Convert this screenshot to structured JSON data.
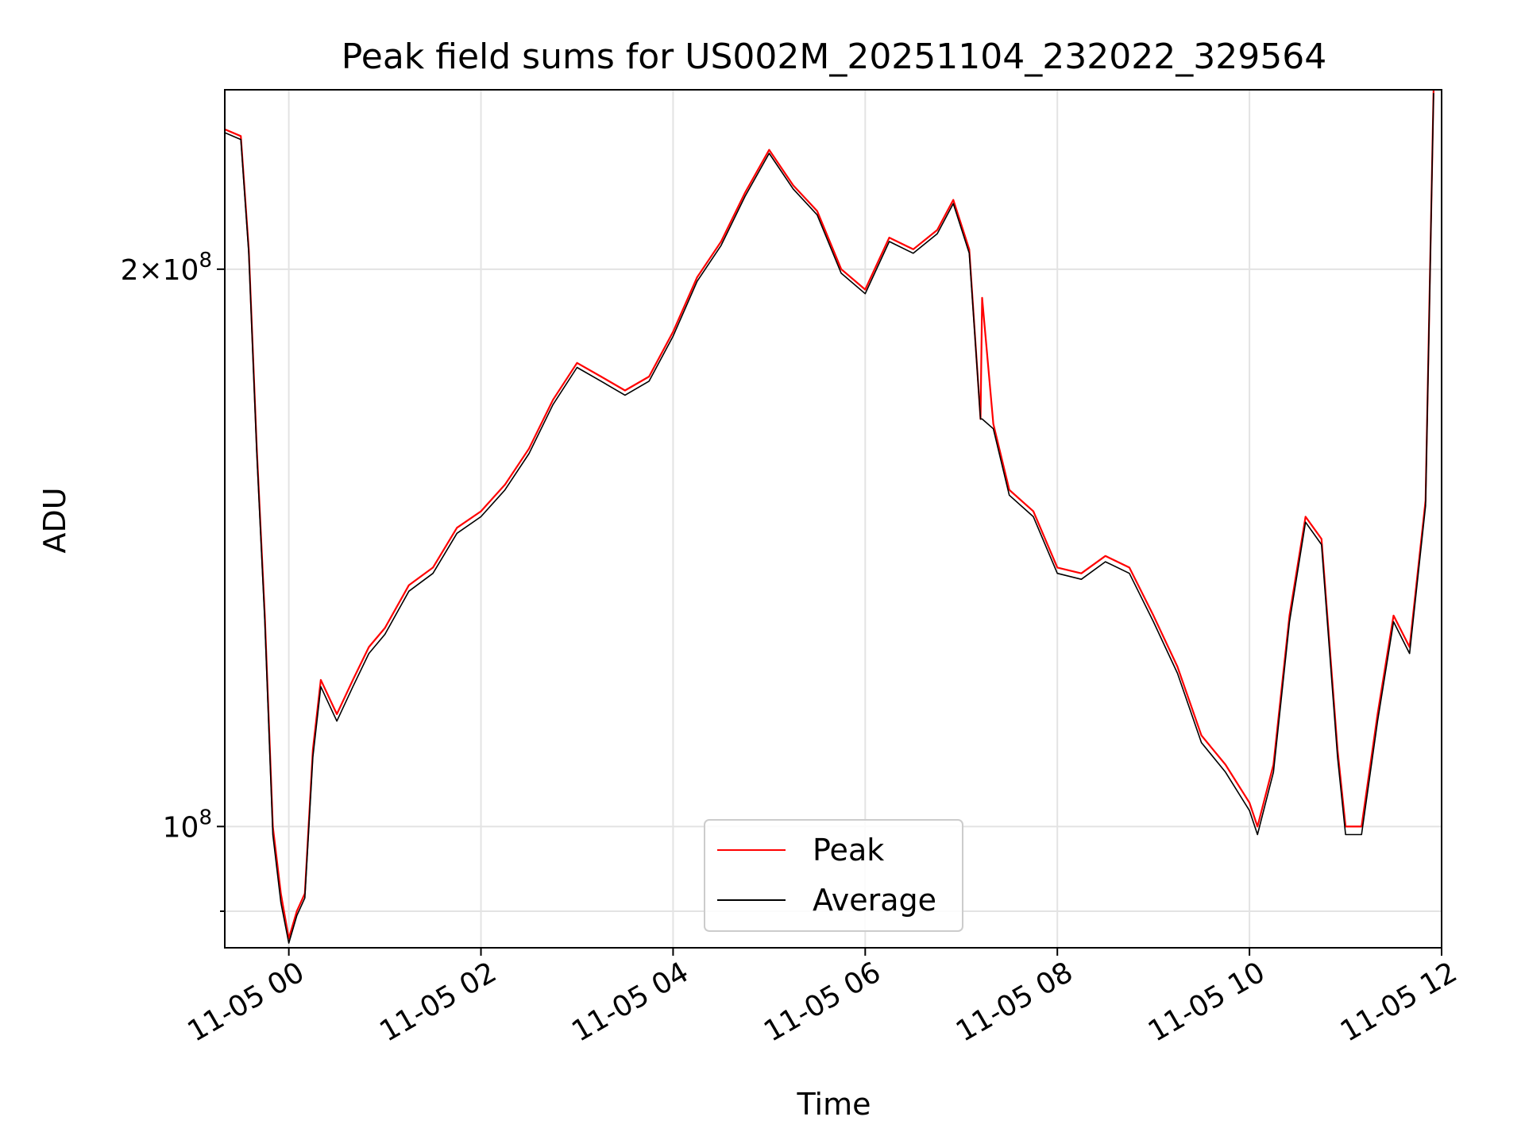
{
  "chart_data": {
    "type": "line",
    "title": "Peak field sums for US002M_20251104_232022_329564",
    "xlabel": "Time",
    "ylabel": "ADU",
    "y_scale": "log",
    "ylim": [
      86000000,
      250000000
    ],
    "xlim": [
      "2025-11-04 23:20",
      "2025-11-05 12:00"
    ],
    "x_ticks": [
      "11-05 00",
      "11-05 02",
      "11-05 04",
      "11-05 06",
      "11-05 08",
      "11-05 10",
      "11-05 12"
    ],
    "y_ticks": [
      {
        "value": 100000000,
        "base": "10",
        "exp": "8",
        "mantissa": ""
      },
      {
        "value": 200000000,
        "base": "10",
        "exp": "8",
        "mantissa": "2"
      }
    ],
    "grid": true,
    "legend_position": "lower-center",
    "series": [
      {
        "name": "Peak",
        "color": "#ff0000",
        "x": [
          "2025-11-04 23:20",
          "2025-11-04 23:30",
          "2025-11-04 23:35",
          "2025-11-04 23:40",
          "2025-11-04 23:45",
          "2025-11-04 23:50",
          "2025-11-04 23:55",
          "2025-11-05 00:00",
          "2025-11-05 00:05",
          "2025-11-05 00:10",
          "2025-11-05 00:15",
          "2025-11-05 00:20",
          "2025-11-05 00:30",
          "2025-11-05 00:40",
          "2025-11-05 00:50",
          "2025-11-05 01:00",
          "2025-11-05 01:15",
          "2025-11-05 01:30",
          "2025-11-05 01:45",
          "2025-11-05 02:00",
          "2025-11-05 02:15",
          "2025-11-05 02:30",
          "2025-11-05 02:45",
          "2025-11-05 03:00",
          "2025-11-05 03:15",
          "2025-11-05 03:30",
          "2025-11-05 03:45",
          "2025-11-05 04:00",
          "2025-11-05 04:15",
          "2025-11-05 04:30",
          "2025-11-05 04:45",
          "2025-11-05 05:00",
          "2025-11-05 05:15",
          "2025-11-05 05:30",
          "2025-11-05 05:45",
          "2025-11-05 06:00",
          "2025-11-05 06:15",
          "2025-11-05 06:30",
          "2025-11-05 06:45",
          "2025-11-05 06:55",
          "2025-11-05 07:05",
          "2025-11-05 07:12",
          "2025-11-05 07:13",
          "2025-11-05 07:20",
          "2025-11-05 07:30",
          "2025-11-05 07:45",
          "2025-11-05 08:00",
          "2025-11-05 08:15",
          "2025-11-05 08:30",
          "2025-11-05 08:45",
          "2025-11-05 09:00",
          "2025-11-05 09:15",
          "2025-11-05 09:30",
          "2025-11-05 09:45",
          "2025-11-05 10:00",
          "2025-11-05 10:05",
          "2025-11-05 10:15",
          "2025-11-05 10:25",
          "2025-11-05 10:35",
          "2025-11-05 10:45",
          "2025-11-05 10:55",
          "2025-11-05 11:00",
          "2025-11-05 11:10",
          "2025-11-05 11:20",
          "2025-11-05 11:30",
          "2025-11-05 11:40",
          "2025-11-05 11:50",
          "2025-11-05 11:55"
        ],
        "y": [
          238000000,
          236000000,
          205000000,
          160000000,
          130000000,
          100000000,
          92000000,
          87000000,
          90000000,
          92000000,
          110000000,
          120000000,
          115000000,
          120000000,
          125000000,
          128000000,
          135000000,
          138000000,
          145000000,
          148000000,
          153000000,
          160000000,
          170000000,
          178000000,
          175000000,
          172000000,
          175000000,
          185000000,
          198000000,
          207000000,
          220000000,
          232000000,
          222000000,
          215000000,
          200000000,
          195000000,
          208000000,
          205000000,
          210000000,
          218000000,
          205000000,
          166000000,
          193000000,
          165000000,
          152000000,
          148000000,
          138000000,
          137000000,
          140000000,
          138000000,
          130000000,
          122000000,
          112000000,
          108000000,
          103000000,
          100000000,
          108000000,
          130000000,
          147000000,
          143000000,
          110000000,
          100000000,
          100000000,
          115000000,
          130000000,
          125000000,
          150000000,
          250000000
        ]
      },
      {
        "name": "Average",
        "color": "#000000",
        "x": [
          "2025-11-04 23:20",
          "2025-11-04 23:30",
          "2025-11-04 23:35",
          "2025-11-04 23:40",
          "2025-11-04 23:45",
          "2025-11-04 23:50",
          "2025-11-04 23:55",
          "2025-11-05 00:00",
          "2025-11-05 00:05",
          "2025-11-05 00:10",
          "2025-11-05 00:15",
          "2025-11-05 00:20",
          "2025-11-05 00:30",
          "2025-11-05 00:40",
          "2025-11-05 00:50",
          "2025-11-05 01:00",
          "2025-11-05 01:15",
          "2025-11-05 01:30",
          "2025-11-05 01:45",
          "2025-11-05 02:00",
          "2025-11-05 02:15",
          "2025-11-05 02:30",
          "2025-11-05 02:45",
          "2025-11-05 03:00",
          "2025-11-05 03:15",
          "2025-11-05 03:30",
          "2025-11-05 03:45",
          "2025-11-05 04:00",
          "2025-11-05 04:15",
          "2025-11-05 04:30",
          "2025-11-05 04:45",
          "2025-11-05 05:00",
          "2025-11-05 05:15",
          "2025-11-05 05:30",
          "2025-11-05 05:45",
          "2025-11-05 06:00",
          "2025-11-05 06:15",
          "2025-11-05 06:30",
          "2025-11-05 06:45",
          "2025-11-05 06:55",
          "2025-11-05 07:05",
          "2025-11-05 07:12",
          "2025-11-05 07:13",
          "2025-11-05 07:20",
          "2025-11-05 07:30",
          "2025-11-05 07:45",
          "2025-11-05 08:00",
          "2025-11-05 08:15",
          "2025-11-05 08:30",
          "2025-11-05 08:45",
          "2025-11-05 09:00",
          "2025-11-05 09:15",
          "2025-11-05 09:30",
          "2025-11-05 09:45",
          "2025-11-05 10:00",
          "2025-11-05 10:05",
          "2025-11-05 10:15",
          "2025-11-05 10:25",
          "2025-11-05 10:35",
          "2025-11-05 10:45",
          "2025-11-05 10:55",
          "2025-11-05 11:00",
          "2025-11-05 11:10",
          "2025-11-05 11:20",
          "2025-11-05 11:30",
          "2025-11-05 11:40",
          "2025-11-05 11:50",
          "2025-11-05 11:55"
        ],
        "y": [
          237000000,
          235000000,
          204000000,
          159000000,
          129000000,
          99000000,
          91000000,
          86500000,
          89500000,
          91500000,
          109000000,
          119000000,
          114000000,
          119000000,
          124000000,
          127000000,
          134000000,
          137000000,
          144000000,
          147000000,
          152000000,
          159000000,
          169000000,
          177000000,
          174000000,
          171000000,
          174000000,
          184000000,
          197000000,
          206000000,
          219000000,
          231000000,
          221000000,
          214000000,
          199000000,
          194000000,
          207000000,
          204000000,
          209000000,
          217000000,
          204000000,
          166000000,
          166000000,
          164000000,
          151000000,
          147000000,
          137000000,
          136000000,
          139000000,
          137000000,
          129000000,
          121000000,
          111000000,
          107000000,
          102000000,
          99000000,
          107000000,
          129000000,
          146000000,
          142000000,
          109000000,
          99000000,
          99000000,
          114000000,
          129000000,
          124000000,
          149000000,
          249000000
        ]
      }
    ]
  }
}
